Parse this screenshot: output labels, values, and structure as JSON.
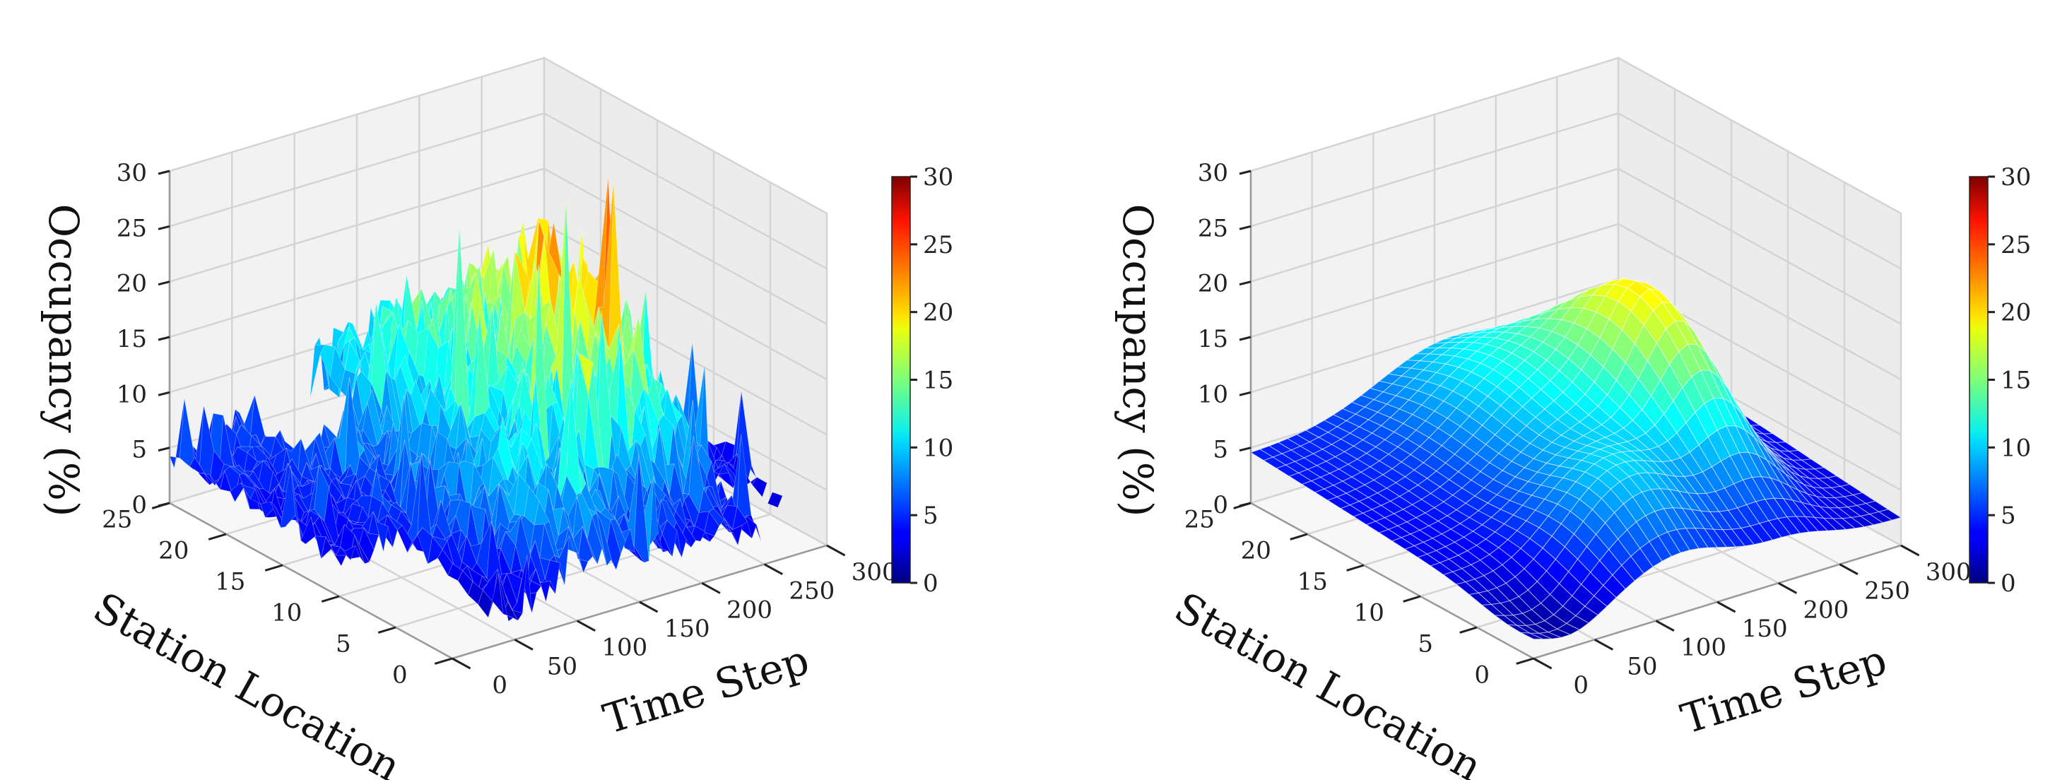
{
  "chart_data": [
    {
      "type": "surface",
      "panel": "left",
      "description_of_data": "raw noisy occupancy surface over time step × station location",
      "xlabel": "Time Step",
      "ylabel": "Station Location",
      "zlabel": "Occupancy (%)",
      "xlim": [
        0,
        300
      ],
      "ylim": [
        0,
        25
      ],
      "zlim": [
        0,
        30
      ],
      "xticks": [
        0,
        50,
        100,
        150,
        200,
        250,
        300
      ],
      "yticks": [
        0,
        5,
        10,
        15,
        20,
        25
      ],
      "zticks": [
        0,
        5,
        10,
        15,
        20,
        25,
        30
      ],
      "colorbar_ticks": [
        0,
        5,
        10,
        15,
        20,
        25,
        30
      ],
      "colormap": "jet",
      "noise": true
    },
    {
      "type": "surface",
      "panel": "right",
      "description_of_data": "smoothed occupancy surface over time step × station location",
      "xlabel": "Time Step",
      "ylabel": "Station Location",
      "zlabel": "Occupancy (%)",
      "xlim": [
        0,
        300
      ],
      "ylim": [
        0,
        25
      ],
      "zlim": [
        0,
        30
      ],
      "xticks": [
        0,
        50,
        100,
        150,
        200,
        250,
        300
      ],
      "yticks": [
        0,
        5,
        10,
        15,
        20,
        25
      ],
      "zticks": [
        0,
        5,
        10,
        15,
        20,
        25,
        30
      ],
      "colorbar_ticks": [
        0,
        5,
        10,
        15,
        20,
        25,
        30
      ],
      "colormap": "jet",
      "noise": false
    }
  ]
}
